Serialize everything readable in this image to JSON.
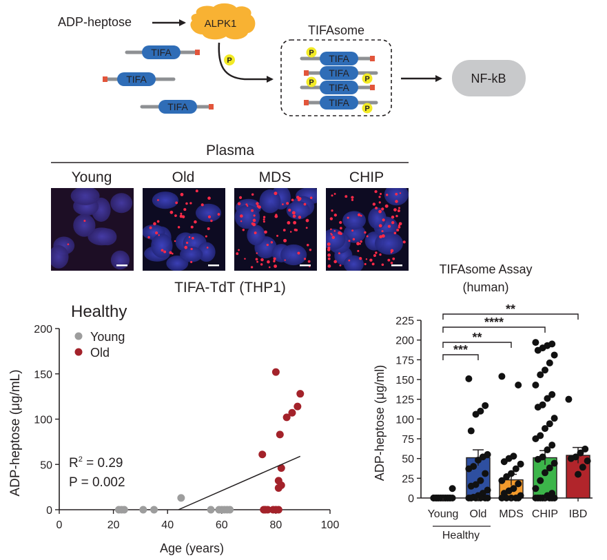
{
  "pathway": {
    "ligand": "ADP-heptose",
    "kinase": "ALPK1",
    "tifa_label": "TIFA",
    "phospho_label": "P",
    "complex_title": "TIFAsome",
    "output": "NF-kB",
    "colors": {
      "kinase": "#f8b233",
      "tifa": "#2f6db7",
      "phospho": "#f2ea25",
      "nfkb": "#c8c9cb",
      "bar_end": "#e2553b"
    }
  },
  "microscopy": {
    "header": "Plasma",
    "conditions": [
      "Young",
      "Old",
      "MDS",
      "CHIP"
    ],
    "caption": "TIFA-TdT (THP1)"
  },
  "scatter": {
    "panel_title": "Healthy",
    "legend": [
      {
        "label": "Young",
        "color": "#9d9d9d"
      },
      {
        "label": "Old",
        "color": "#a3222a"
      }
    ],
    "stats": {
      "r2_prefix": "R",
      "r2_sup": "2",
      "r2_value": " = 0.29",
      "p": "P = 0.002"
    }
  },
  "bars": {
    "title_line1": "TIFAsome Assay",
    "title_line2": "(human)",
    "group_label": "Healthy",
    "significance": [
      {
        "label": "***",
        "from": "Young",
        "to": "Old"
      },
      {
        "label": "**",
        "from": "Young",
        "to": "MDS"
      },
      {
        "label": "****",
        "from": "Young",
        "to": "CHIP"
      },
      {
        "label": "**",
        "from": "Young",
        "to": "IBD"
      }
    ]
  },
  "chart_data": [
    {
      "type": "scatter",
      "title": "Healthy",
      "xlabel": "Age (years)",
      "ylabel": "ADP-heptose (μg/mL)",
      "xlim": [
        0,
        100
      ],
      "ylim": [
        0,
        200
      ],
      "xticks": [
        0,
        20,
        40,
        60,
        80,
        100
      ],
      "yticks": [
        0,
        50,
        100,
        150,
        200
      ],
      "series": [
        {
          "name": "Young",
          "color": "#9d9d9d",
          "x": [
            22,
            23,
            24,
            31,
            35,
            45,
            56,
            59,
            60,
            61,
            62,
            63
          ],
          "y": [
            0,
            0,
            0,
            0,
            0,
            13,
            0,
            0,
            0,
            0,
            0,
            0
          ]
        },
        {
          "name": "Old",
          "color": "#a3222a",
          "x": [
            75,
            75.5,
            76,
            77,
            79,
            80,
            81,
            81,
            81.5,
            82,
            81,
            82,
            84,
            86,
            88,
            89,
            80,
            76
          ],
          "y": [
            61,
            0,
            0,
            0,
            0,
            152,
            32,
            24,
            83,
            46,
            0,
            27,
            102,
            107,
            114,
            128,
            0,
            0
          ]
        }
      ],
      "regression": {
        "x": [
          44,
          89
        ],
        "y": [
          0,
          59
        ]
      }
    },
    {
      "type": "bar",
      "xlabel": "",
      "ylabel": "ADP-heptose (μg/ml)",
      "ylim": [
        0,
        225
      ],
      "yticks": [
        0,
        25,
        50,
        75,
        100,
        125,
        150,
        175,
        200,
        225
      ],
      "categories": [
        "Young",
        "Old",
        "MDS",
        "CHIP",
        "IBD"
      ],
      "values": [
        1,
        51,
        23,
        51,
        54
      ],
      "sem": [
        0.7,
        10,
        7,
        9,
        10
      ],
      "colors": [
        "#ffffff",
        "#2e4fa0",
        "#f39a2c",
        "#3cb54a",
        "#b1252b"
      ],
      "points": [
        [
          0,
          0,
          0,
          0,
          0,
          0,
          0,
          0,
          0,
          0,
          0,
          0,
          0,
          0,
          12,
          0,
          0,
          0
        ],
        [
          151,
          117,
          110,
          106,
          85,
          55,
          52,
          48,
          40,
          37,
          31,
          22,
          17,
          15,
          10,
          6,
          3,
          1,
          0,
          0,
          0,
          0,
          0,
          0
        ],
        [
          154,
          143,
          53,
          50,
          46,
          43,
          37,
          31,
          27,
          22,
          18,
          12,
          9,
          6,
          3,
          0,
          0,
          0,
          0,
          0
        ],
        [
          197,
          195,
          193,
          190,
          187,
          181,
          171,
          162,
          156,
          143,
          131,
          126,
          118,
          115,
          101,
          94,
          88,
          79,
          75,
          67,
          61,
          52,
          49,
          44,
          38,
          32,
          22,
          12,
          6,
          3,
          0,
          0,
          0,
          0,
          0,
          0,
          0,
          0
        ],
        [
          125,
          62,
          57,
          52,
          50,
          47,
          39,
          30
        ]
      ]
    }
  ]
}
